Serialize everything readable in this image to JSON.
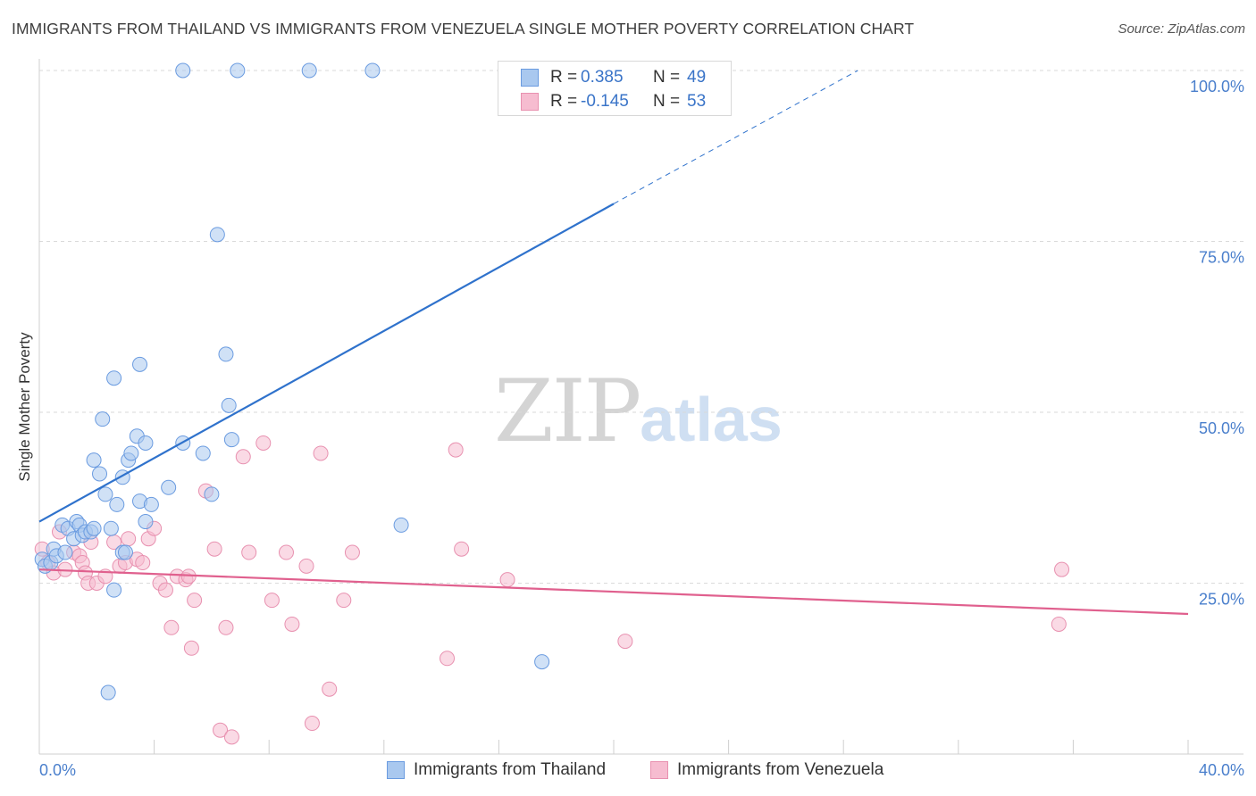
{
  "title": "IMMIGRANTS FROM THAILAND VS IMMIGRANTS FROM VENEZUELA SINGLE MOTHER POVERTY CORRELATION CHART",
  "source": "Source: ZipAtlas.com",
  "watermark": {
    "zip": "ZIP",
    "atlas": "atlas"
  },
  "legend_top": {
    "rows": [
      {
        "r_label": "R =",
        "r_value": "0.385",
        "n_label": "N =",
        "n_value": "49"
      },
      {
        "r_label": "R =",
        "r_value": "-0.145",
        "n_label": "N =",
        "n_value": "53"
      }
    ]
  },
  "legend_bottom": {
    "thailand": "Immigrants from Thailand",
    "venezuela": "Immigrants from Venezuela"
  },
  "colors": {
    "thailand_fill": "#a9c8ef",
    "thailand_stroke": "#6a9be0",
    "thailand_line": "#2f72cc",
    "venezuela_fill": "#f6bcd0",
    "venezuela_stroke": "#e891b0",
    "venezuela_line": "#e0608e",
    "tick_label": "#4a7fcc",
    "grid": "#dadada"
  },
  "chart_data": {
    "type": "scatter",
    "title": "IMMIGRANTS FROM THAILAND VS IMMIGRANTS FROM VENEZUELA SINGLE MOTHER POVERTY CORRELATION CHART",
    "xlabel": "",
    "ylabel": "Single Mother Poverty",
    "xlim": [
      0,
      40
    ],
    "ylim": [
      0,
      100
    ],
    "x_tick_labels": [
      "0.0%",
      "40.0%"
    ],
    "y_ticks": [
      25,
      50,
      75,
      100
    ],
    "y_tick_labels": [
      "25.0%",
      "50.0%",
      "75.0%",
      "100.0%"
    ],
    "series": [
      {
        "name": "Immigrants from Thailand",
        "R": 0.385,
        "N": 49,
        "trend": {
          "x": [
            0,
            20
          ],
          "y": [
            34.0,
            80.5
          ],
          "dashed_to": [
            28.5,
            100
          ]
        },
        "points": [
          [
            0.1,
            28.5
          ],
          [
            0.2,
            27.5
          ],
          [
            0.4,
            28.0
          ],
          [
            0.5,
            30.0
          ],
          [
            0.6,
            29.0
          ],
          [
            0.8,
            33.5
          ],
          [
            0.9,
            29.5
          ],
          [
            1.0,
            33.0
          ],
          [
            1.2,
            31.5
          ],
          [
            1.3,
            34.0
          ],
          [
            1.4,
            33.5
          ],
          [
            1.5,
            32.0
          ],
          [
            1.6,
            32.5
          ],
          [
            1.8,
            32.5
          ],
          [
            1.9,
            33.0
          ],
          [
            1.9,
            43.0
          ],
          [
            2.1,
            41.0
          ],
          [
            2.2,
            49.0
          ],
          [
            2.3,
            38.0
          ],
          [
            2.6,
            55.0
          ],
          [
            2.7,
            36.5
          ],
          [
            2.6,
            24.0
          ],
          [
            2.9,
            29.5
          ],
          [
            2.9,
            40.5
          ],
          [
            3.1,
            43.0
          ],
          [
            3.2,
            44.0
          ],
          [
            3.4,
            46.5
          ],
          [
            3.5,
            57.0
          ],
          [
            3.5,
            37.0
          ],
          [
            3.7,
            34.0
          ],
          [
            3.7,
            45.5
          ],
          [
            3.9,
            36.5
          ],
          [
            4.5,
            39.0
          ],
          [
            5.0,
            45.5
          ],
          [
            5.7,
            44.0
          ],
          [
            6.0,
            38.0
          ],
          [
            6.2,
            76.0
          ],
          [
            6.5,
            58.5
          ],
          [
            6.6,
            51.0
          ],
          [
            6.7,
            46.0
          ],
          [
            5.0,
            100.0
          ],
          [
            6.9,
            100.0
          ],
          [
            9.4,
            100.0
          ],
          [
            11.6,
            100.0
          ],
          [
            12.6,
            33.5
          ],
          [
            17.5,
            13.5
          ],
          [
            2.4,
            9.0
          ],
          [
            3.0,
            29.5
          ],
          [
            2.5,
            33.0
          ]
        ]
      },
      {
        "name": "Immigrants from Venezuela",
        "R": -0.145,
        "N": 53,
        "trend": {
          "x": [
            0,
            40
          ],
          "y": [
            27.0,
            20.5
          ]
        },
        "points": [
          [
            0.1,
            30.0
          ],
          [
            0.3,
            28.0
          ],
          [
            0.5,
            26.5
          ],
          [
            0.7,
            32.5
          ],
          [
            0.9,
            27.0
          ],
          [
            1.2,
            29.5
          ],
          [
            1.4,
            29.0
          ],
          [
            1.5,
            28.0
          ],
          [
            1.6,
            26.5
          ],
          [
            1.7,
            25.0
          ],
          [
            1.8,
            31.0
          ],
          [
            2.0,
            25.0
          ],
          [
            2.3,
            26.0
          ],
          [
            2.6,
            31.0
          ],
          [
            2.8,
            27.5
          ],
          [
            3.0,
            28.0
          ],
          [
            3.1,
            31.5
          ],
          [
            3.4,
            28.5
          ],
          [
            3.6,
            28.0
          ],
          [
            3.8,
            31.5
          ],
          [
            4.0,
            33.0
          ],
          [
            4.2,
            25.0
          ],
          [
            4.4,
            24.0
          ],
          [
            4.6,
            18.5
          ],
          [
            4.8,
            26.0
          ],
          [
            5.1,
            25.5
          ],
          [
            5.2,
            26.0
          ],
          [
            5.3,
            15.5
          ],
          [
            5.4,
            22.5
          ],
          [
            5.8,
            38.5
          ],
          [
            6.1,
            30.0
          ],
          [
            6.3,
            3.5
          ],
          [
            6.5,
            18.5
          ],
          [
            6.7,
            2.5
          ],
          [
            7.1,
            43.5
          ],
          [
            7.3,
            29.5
          ],
          [
            7.8,
            45.5
          ],
          [
            8.1,
            22.5
          ],
          [
            8.6,
            29.5
          ],
          [
            8.8,
            19.0
          ],
          [
            9.3,
            27.5
          ],
          [
            9.5,
            4.5
          ],
          [
            9.8,
            44.0
          ],
          [
            10.1,
            9.5
          ],
          [
            10.6,
            22.5
          ],
          [
            10.9,
            29.5
          ],
          [
            14.2,
            14.0
          ],
          [
            14.5,
            44.5
          ],
          [
            14.7,
            30.0
          ],
          [
            16.3,
            25.5
          ],
          [
            20.4,
            16.5
          ],
          [
            35.6,
            27.0
          ],
          [
            35.5,
            19.0
          ]
        ]
      }
    ]
  }
}
